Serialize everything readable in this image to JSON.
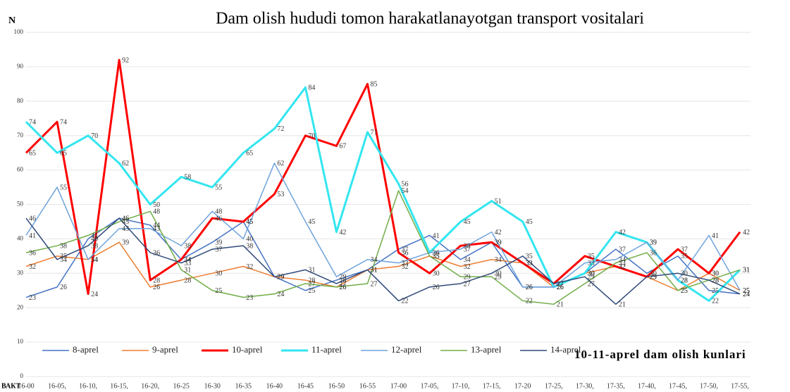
{
  "chart_data": {
    "type": "line",
    "title": "Dam olish hududi tomon harakatlanayotgan transport vositalari",
    "y_label": "N",
    "x_label": "ВАКТ",
    "annotation": "10-11-aprel dam olish kunlari",
    "categories": [
      "16-00",
      "16-05,",
      "16-10,",
      "16-15,",
      "16-20,",
      "16-25",
      "16-30",
      "16-35",
      "16-40",
      "16-45",
      "16-50",
      "16-55",
      "17-00",
      "17-05,",
      "17-10,",
      "17-15,",
      "17-20",
      "17-25,",
      "17-30,",
      "17-35,",
      "17-40,",
      "17-45,",
      "17-50,",
      "17-55,"
    ],
    "ylim": [
      0,
      100
    ],
    "yticks": [
      0,
      10,
      20,
      30,
      40,
      50,
      60,
      70,
      80,
      90,
      100
    ],
    "grid": true,
    "legend": "bottom",
    "series": [
      {
        "name": "8-aprel",
        "color": "#4472c4",
        "line_width": 1.5,
        "values": [
          23,
          26,
          40,
          46,
          44,
          34,
          39,
          45,
          29,
          25,
          28,
          31,
          37,
          41,
          34,
          39,
          26,
          26,
          30,
          37,
          30,
          35,
          25,
          24
        ]
      },
      {
        "name": "9-aprel",
        "color": "#ed7d31",
        "line_width": 1.5,
        "values": [
          32,
          35,
          34,
          39,
          26,
          28,
          30,
          32,
          29,
          28,
          26,
          31,
          32,
          35,
          32,
          34,
          33,
          26,
          30,
          32,
          29,
          25,
          30,
          25
        ]
      },
      {
        "name": "10-aprel",
        "color": "#ff0000",
        "line_width": 3,
        "values": [
          65,
          74,
          24,
          92,
          28,
          34,
          46,
          45,
          53,
          70,
          67,
          85,
          36,
          30,
          38,
          39,
          33,
          27,
          35,
          32,
          29,
          37,
          30,
          42
        ]
      },
      {
        "name": "11-aprel",
        "color": "#33e6f0",
        "line_width": 3,
        "values": [
          74,
          65,
          70,
          62,
          50,
          58,
          55,
          65,
          72,
          84,
          42,
          71,
          56,
          36,
          45,
          51,
          45,
          26,
          30,
          42,
          39,
          28,
          22,
          31
        ]
      },
      {
        "name": "12-aprel",
        "color": "#6fa3dc",
        "line_width": 1.5,
        "values": [
          41,
          55,
          34,
          43,
          43,
          38,
          48,
          40,
          62,
          45,
          29,
          34,
          33,
          36,
          37,
          42,
          26,
          26,
          33,
          34,
          39,
          28,
          41,
          25
        ]
      },
      {
        "name": "13-aprel",
        "color": "#70ad47",
        "line_width": 1.5,
        "values": [
          36,
          38,
          41,
          45,
          48,
          31,
          25,
          23,
          24,
          27,
          26,
          27,
          54,
          35,
          29,
          29,
          22,
          21,
          27,
          33,
          36,
          25,
          28,
          31
        ]
      },
      {
        "name": "14-aprel",
        "color": "#2f4a7a",
        "line_width": 1.5,
        "values": [
          46,
          34,
          38,
          46,
          36,
          33,
          37,
          38,
          29,
          31,
          27,
          31,
          22,
          26,
          27,
          30,
          35,
          27,
          29,
          21,
          29,
          30,
          28,
          24
        ]
      }
    ]
  }
}
